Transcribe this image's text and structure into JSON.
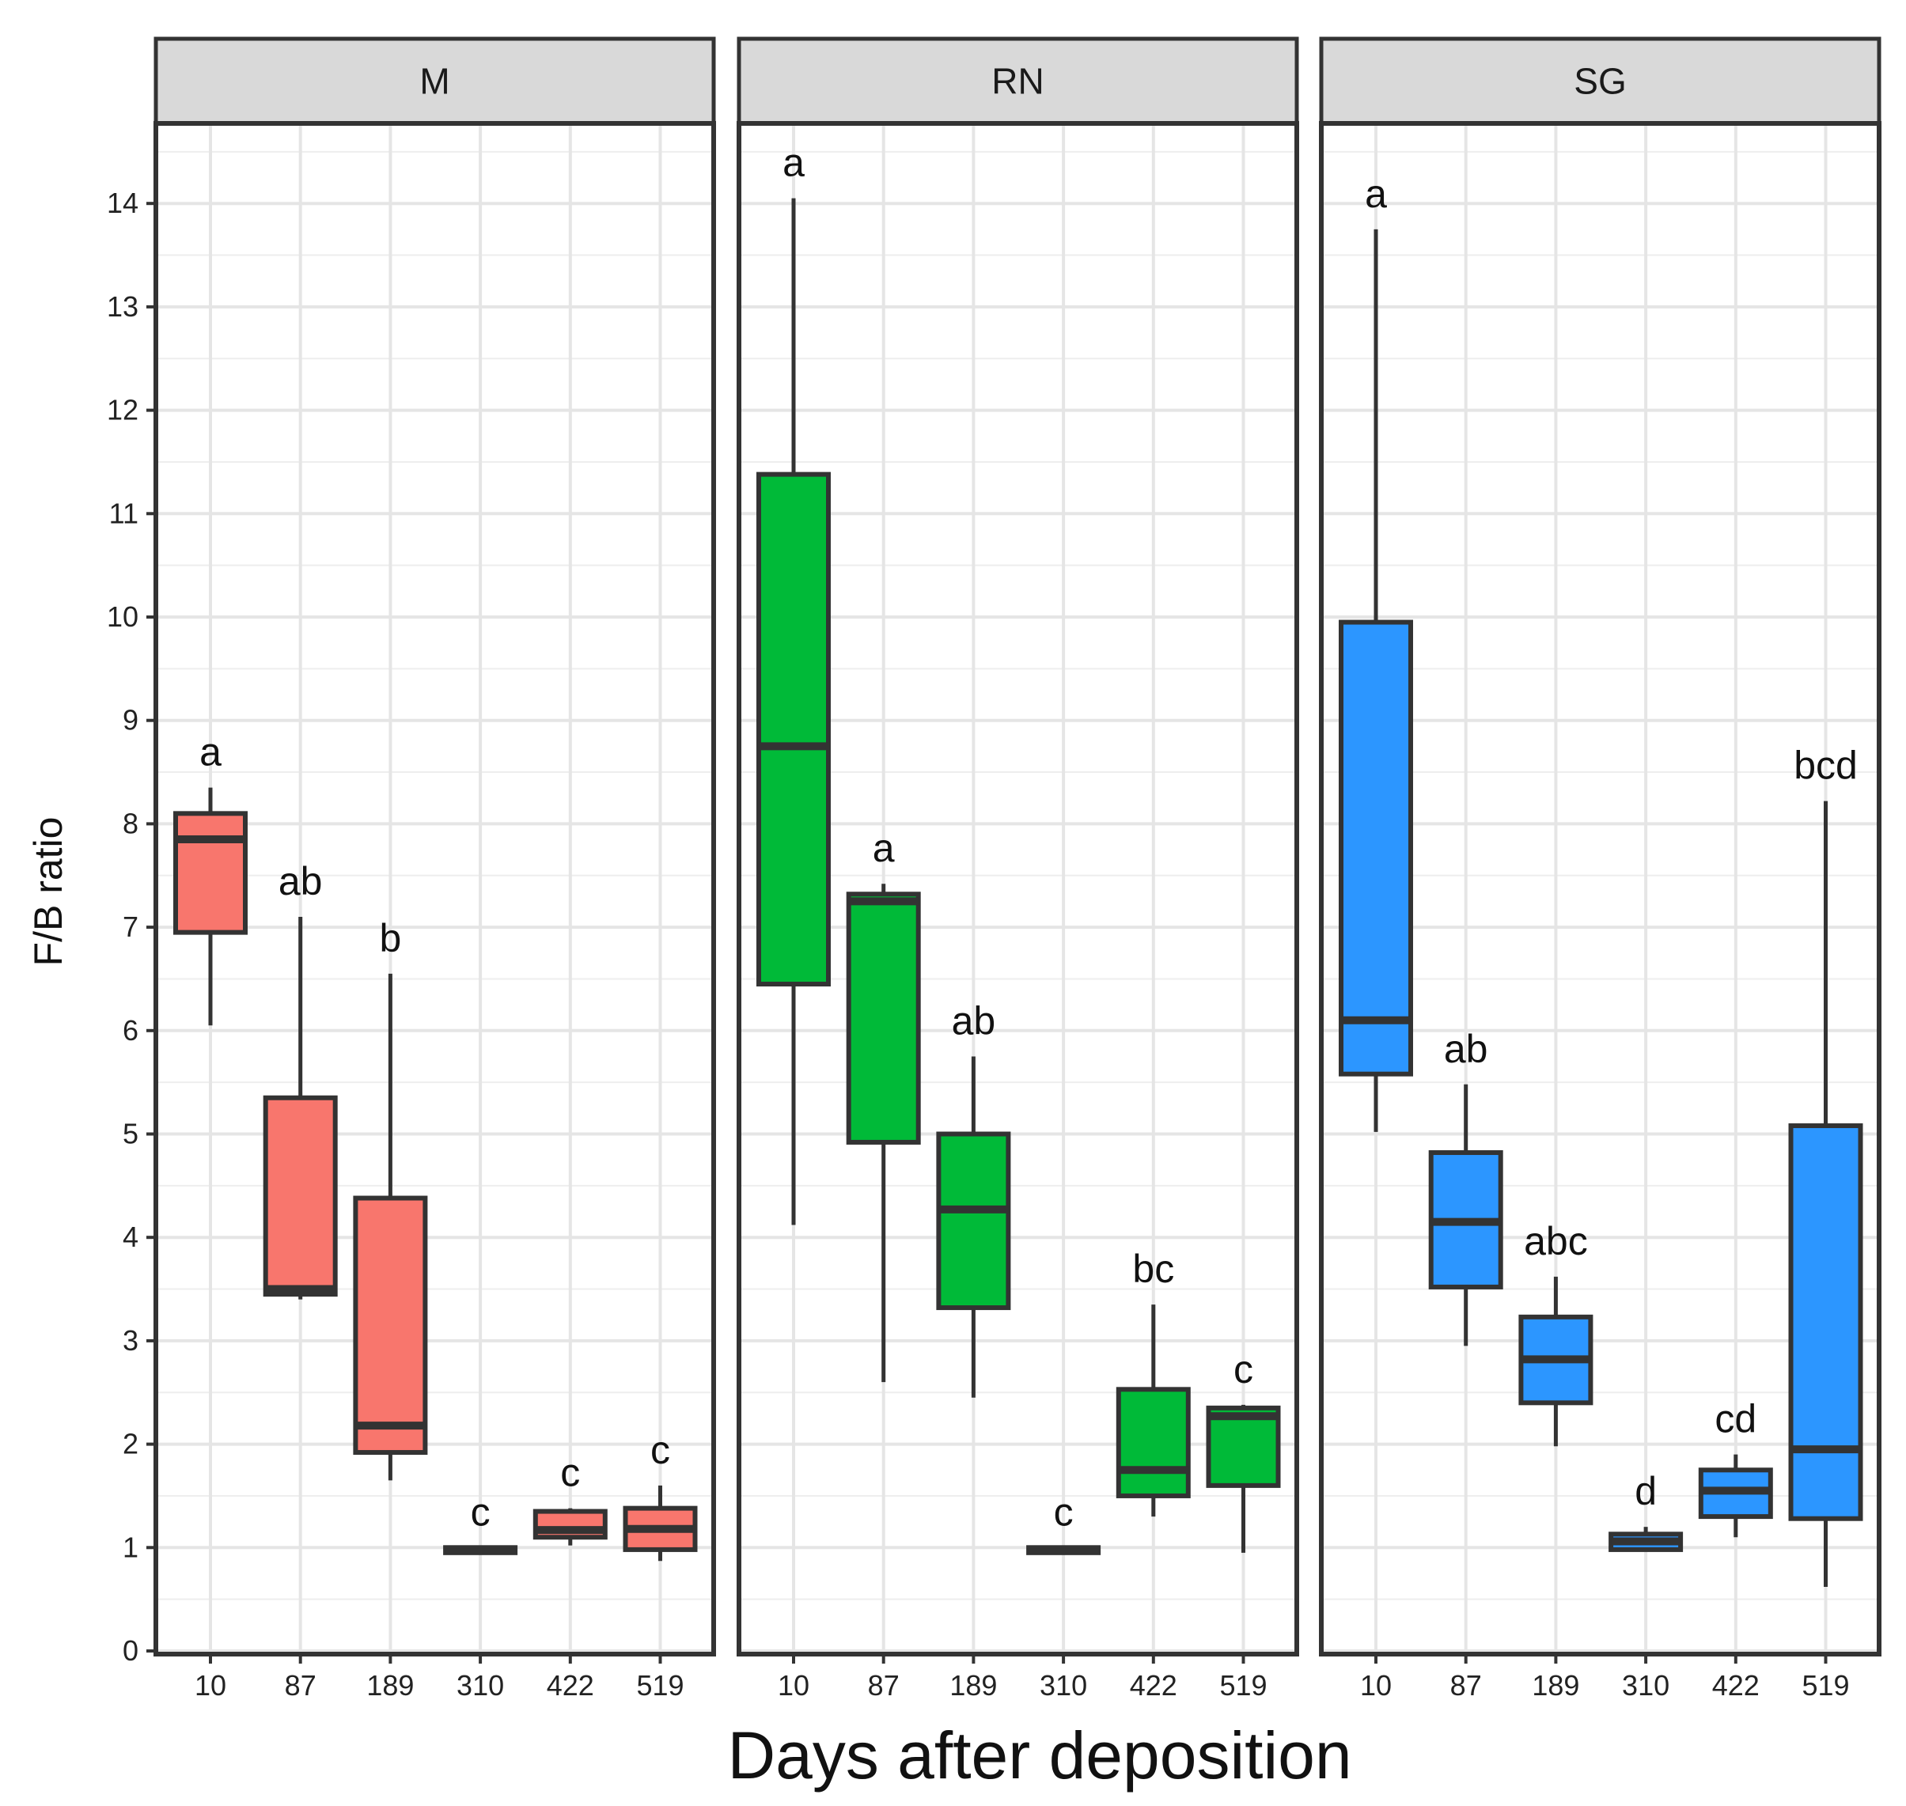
{
  "chart_data": {
    "type": "boxplot",
    "xlabel": "Days after deposition",
    "ylabel": "F/B ratio",
    "ylim": [
      0,
      14.8
    ],
    "y_ticks": [
      0,
      1,
      2,
      3,
      4,
      5,
      6,
      7,
      8,
      9,
      10,
      11,
      12,
      13,
      14
    ],
    "categories": [
      "10",
      "87",
      "189",
      "310",
      "422",
      "519"
    ],
    "grid": true,
    "panels": [
      {
        "name": "M",
        "color": "#F8766D",
        "boxes": [
          {
            "day": "10",
            "min": 6.05,
            "q1": 6.95,
            "median": 7.85,
            "q3": 8.1,
            "max": 8.35,
            "label": "a"
          },
          {
            "day": "87",
            "min": 3.4,
            "q1": 3.45,
            "median": 3.5,
            "q3": 5.35,
            "max": 7.1,
            "label": "ab"
          },
          {
            "day": "189",
            "min": 1.65,
            "q1": 1.92,
            "median": 2.18,
            "q3": 4.38,
            "max": 6.55,
            "label": "b"
          },
          {
            "day": "310",
            "min": 0.95,
            "q1": 0.95,
            "median": 0.97,
            "q3": 1.0,
            "max": 1.0,
            "label": "c"
          },
          {
            "day": "422",
            "min": 1.02,
            "q1": 1.1,
            "median": 1.17,
            "q3": 1.35,
            "max": 1.38,
            "label": "c"
          },
          {
            "day": "519",
            "min": 0.87,
            "q1": 0.98,
            "median": 1.18,
            "q3": 1.38,
            "max": 1.6,
            "label": "c"
          }
        ]
      },
      {
        "name": "RN",
        "color": "#00BA38",
        "boxes": [
          {
            "day": "10",
            "min": 4.12,
            "q1": 6.45,
            "median": 8.75,
            "q3": 11.38,
            "max": 14.05,
            "label": "a"
          },
          {
            "day": "87",
            "min": 2.6,
            "q1": 4.92,
            "median": 7.25,
            "q3": 7.32,
            "max": 7.42,
            "label": "a"
          },
          {
            "day": "189",
            "min": 2.45,
            "q1": 3.32,
            "median": 4.27,
            "q3": 5.0,
            "max": 5.75,
            "label": "ab"
          },
          {
            "day": "310",
            "min": 0.95,
            "q1": 0.95,
            "median": 0.97,
            "q3": 1.0,
            "max": 1.0,
            "label": "c"
          },
          {
            "day": "422",
            "min": 1.3,
            "q1": 1.5,
            "median": 1.75,
            "q3": 2.53,
            "max": 3.35,
            "label": "bc"
          },
          {
            "day": "519",
            "min": 0.95,
            "q1": 1.6,
            "median": 2.27,
            "q3": 2.35,
            "max": 2.38,
            "label": "c"
          }
        ]
      },
      {
        "name": "SG",
        "color": "#2C96FF",
        "boxes": [
          {
            "day": "10",
            "min": 5.02,
            "q1": 5.58,
            "median": 6.1,
            "q3": 9.95,
            "max": 13.75,
            "label": "a"
          },
          {
            "day": "87",
            "min": 2.95,
            "q1": 3.52,
            "median": 4.15,
            "q3": 4.82,
            "max": 5.48,
            "label": "ab"
          },
          {
            "day": "189",
            "min": 1.98,
            "q1": 2.4,
            "median": 2.82,
            "q3": 3.23,
            "max": 3.62,
            "label": "abc"
          },
          {
            "day": "310",
            "min": 0.98,
            "q1": 0.98,
            "median": 1.06,
            "q3": 1.13,
            "max": 1.2,
            "label": "d"
          },
          {
            "day": "422",
            "min": 1.1,
            "q1": 1.3,
            "median": 1.55,
            "q3": 1.75,
            "max": 1.9,
            "label": "cd"
          },
          {
            "day": "519",
            "min": 0.62,
            "q1": 1.28,
            "median": 1.95,
            "q3": 5.08,
            "max": 8.22,
            "label": "bcd"
          }
        ]
      }
    ]
  }
}
